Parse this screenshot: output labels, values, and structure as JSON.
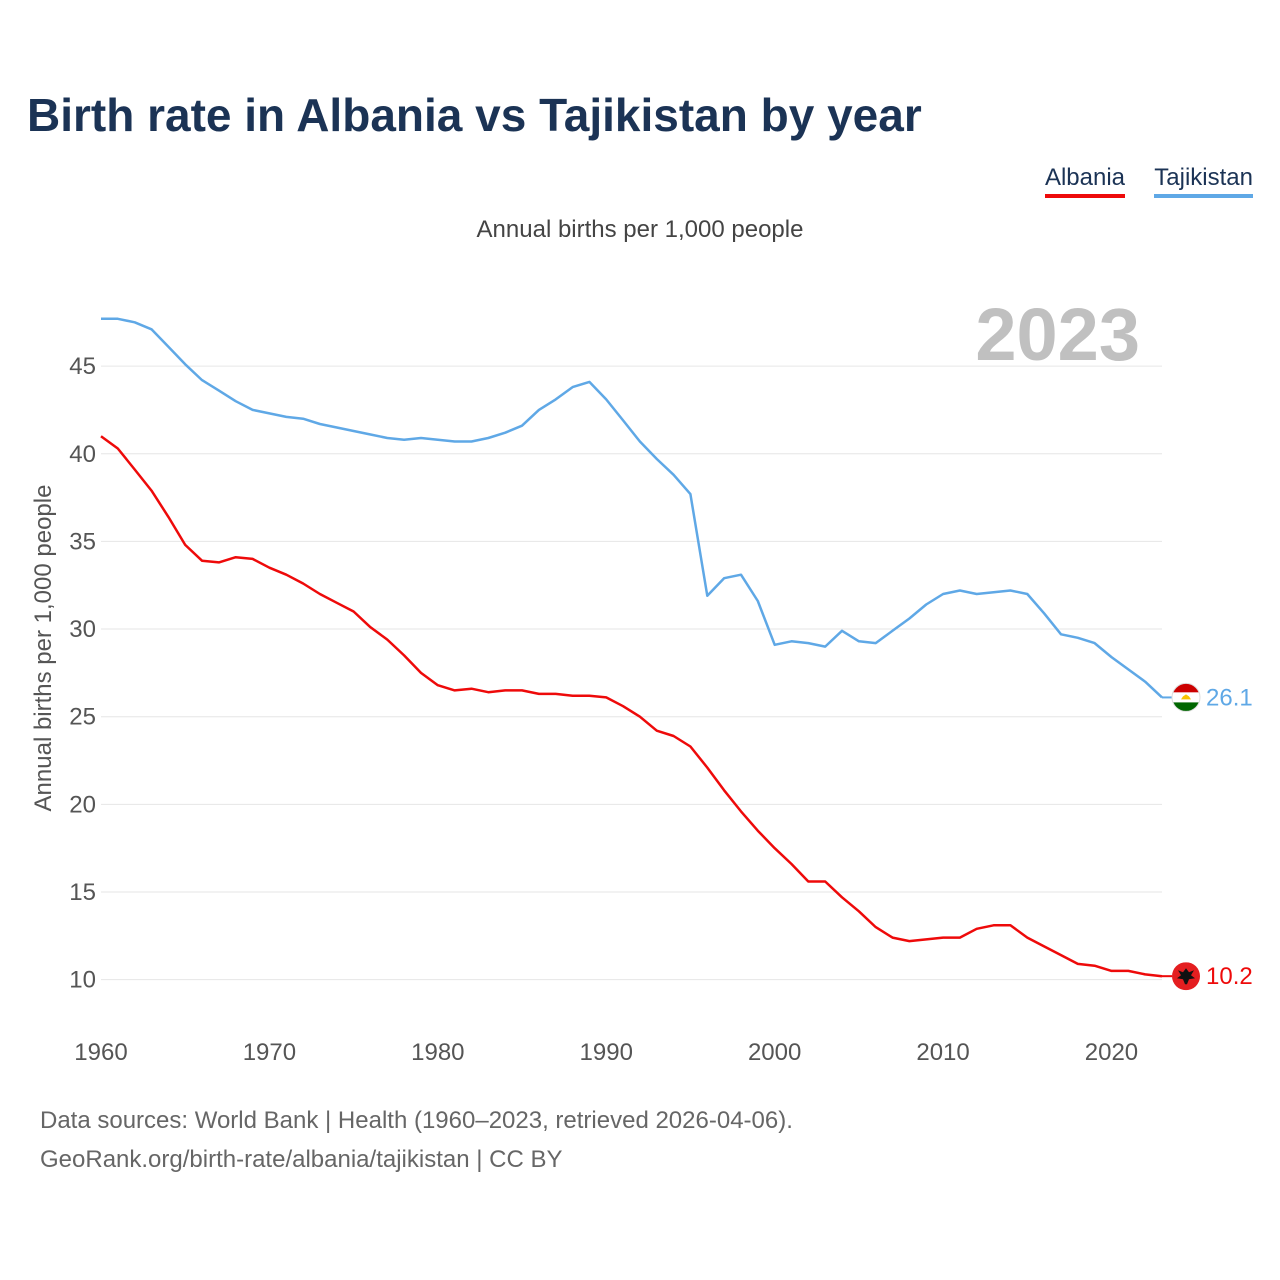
{
  "chart_data": {
    "type": "line",
    "title": "Birth rate in Albania vs Tajikistan by year",
    "subtitle": "Annual births per 1,000 people",
    "ylabel": "Annual births per 1,000 people",
    "xlabel": "",
    "year_label": "2023",
    "xlim": [
      1960,
      2023
    ],
    "ylim": [
      7.7,
      48.2
    ],
    "x_ticks": [
      1960,
      1970,
      1980,
      1990,
      2000,
      2010,
      2020
    ],
    "y_ticks": [
      10,
      15,
      20,
      25,
      30,
      35,
      40,
      45
    ],
    "grid": true,
    "legend_position": "top-right",
    "x": [
      1960,
      1961,
      1962,
      1963,
      1964,
      1965,
      1966,
      1967,
      1968,
      1969,
      1970,
      1971,
      1972,
      1973,
      1974,
      1975,
      1976,
      1977,
      1978,
      1979,
      1980,
      1981,
      1982,
      1983,
      1984,
      1985,
      1986,
      1987,
      1988,
      1989,
      1990,
      1991,
      1992,
      1993,
      1994,
      1995,
      1996,
      1997,
      1998,
      1999,
      2000,
      2001,
      2002,
      2003,
      2004,
      2005,
      2006,
      2007,
      2008,
      2009,
      2010,
      2011,
      2012,
      2013,
      2014,
      2015,
      2016,
      2017,
      2018,
      2019,
      2020,
      2021,
      2022,
      2023
    ],
    "series": [
      {
        "name": "Albania",
        "color": "#ee0a0a",
        "end_label": "10.2",
        "values": [
          41.0,
          40.3,
          39.1,
          37.9,
          36.4,
          34.8,
          33.9,
          33.8,
          34.1,
          34.0,
          33.5,
          33.1,
          32.6,
          32.0,
          31.5,
          31.0,
          30.1,
          29.4,
          28.5,
          27.5,
          26.8,
          26.5,
          26.6,
          26.4,
          26.5,
          26.5,
          26.3,
          26.3,
          26.2,
          26.2,
          26.1,
          25.6,
          25.0,
          24.2,
          23.9,
          23.3,
          22.1,
          20.8,
          19.6,
          18.5,
          17.5,
          16.6,
          15.6,
          15.6,
          14.7,
          13.9,
          13.0,
          12.4,
          12.2,
          12.3,
          12.4,
          12.4,
          12.9,
          13.1,
          13.1,
          12.4,
          11.9,
          11.4,
          10.9,
          10.8,
          10.5,
          10.5,
          10.3,
          10.2
        ]
      },
      {
        "name": "Tajikistan",
        "color": "#5fa8e6",
        "end_label": "26.1",
        "values": [
          47.7,
          47.7,
          47.5,
          47.1,
          46.1,
          45.1,
          44.2,
          43.6,
          43.0,
          42.5,
          42.3,
          42.1,
          42.0,
          41.7,
          41.5,
          41.3,
          41.1,
          40.9,
          40.8,
          40.9,
          40.8,
          40.7,
          40.7,
          40.9,
          41.2,
          41.6,
          42.5,
          43.1,
          43.8,
          44.1,
          43.1,
          41.9,
          40.7,
          39.7,
          38.8,
          37.7,
          31.9,
          32.9,
          33.1,
          31.6,
          29.1,
          29.3,
          29.2,
          29.0,
          29.9,
          29.3,
          29.2,
          29.9,
          30.6,
          31.4,
          32.0,
          32.2,
          32.0,
          32.1,
          32.2,
          32.0,
          30.9,
          29.7,
          29.5,
          29.2,
          28.4,
          27.7,
          27.0,
          26.1
        ]
      }
    ]
  },
  "legend": {
    "albania": "Albania",
    "tajikistan": "Tajikistan"
  },
  "flags": {
    "albania": "albania-flag-icon",
    "tajikistan": "tajikistan-flag-icon"
  },
  "source": {
    "line1": "Data sources: World Bank | Health (1960–2023, retrieved 2026-04-06).",
    "line2": "GeoRank.org/birth-rate/albania/tajikistan | CC BY"
  }
}
